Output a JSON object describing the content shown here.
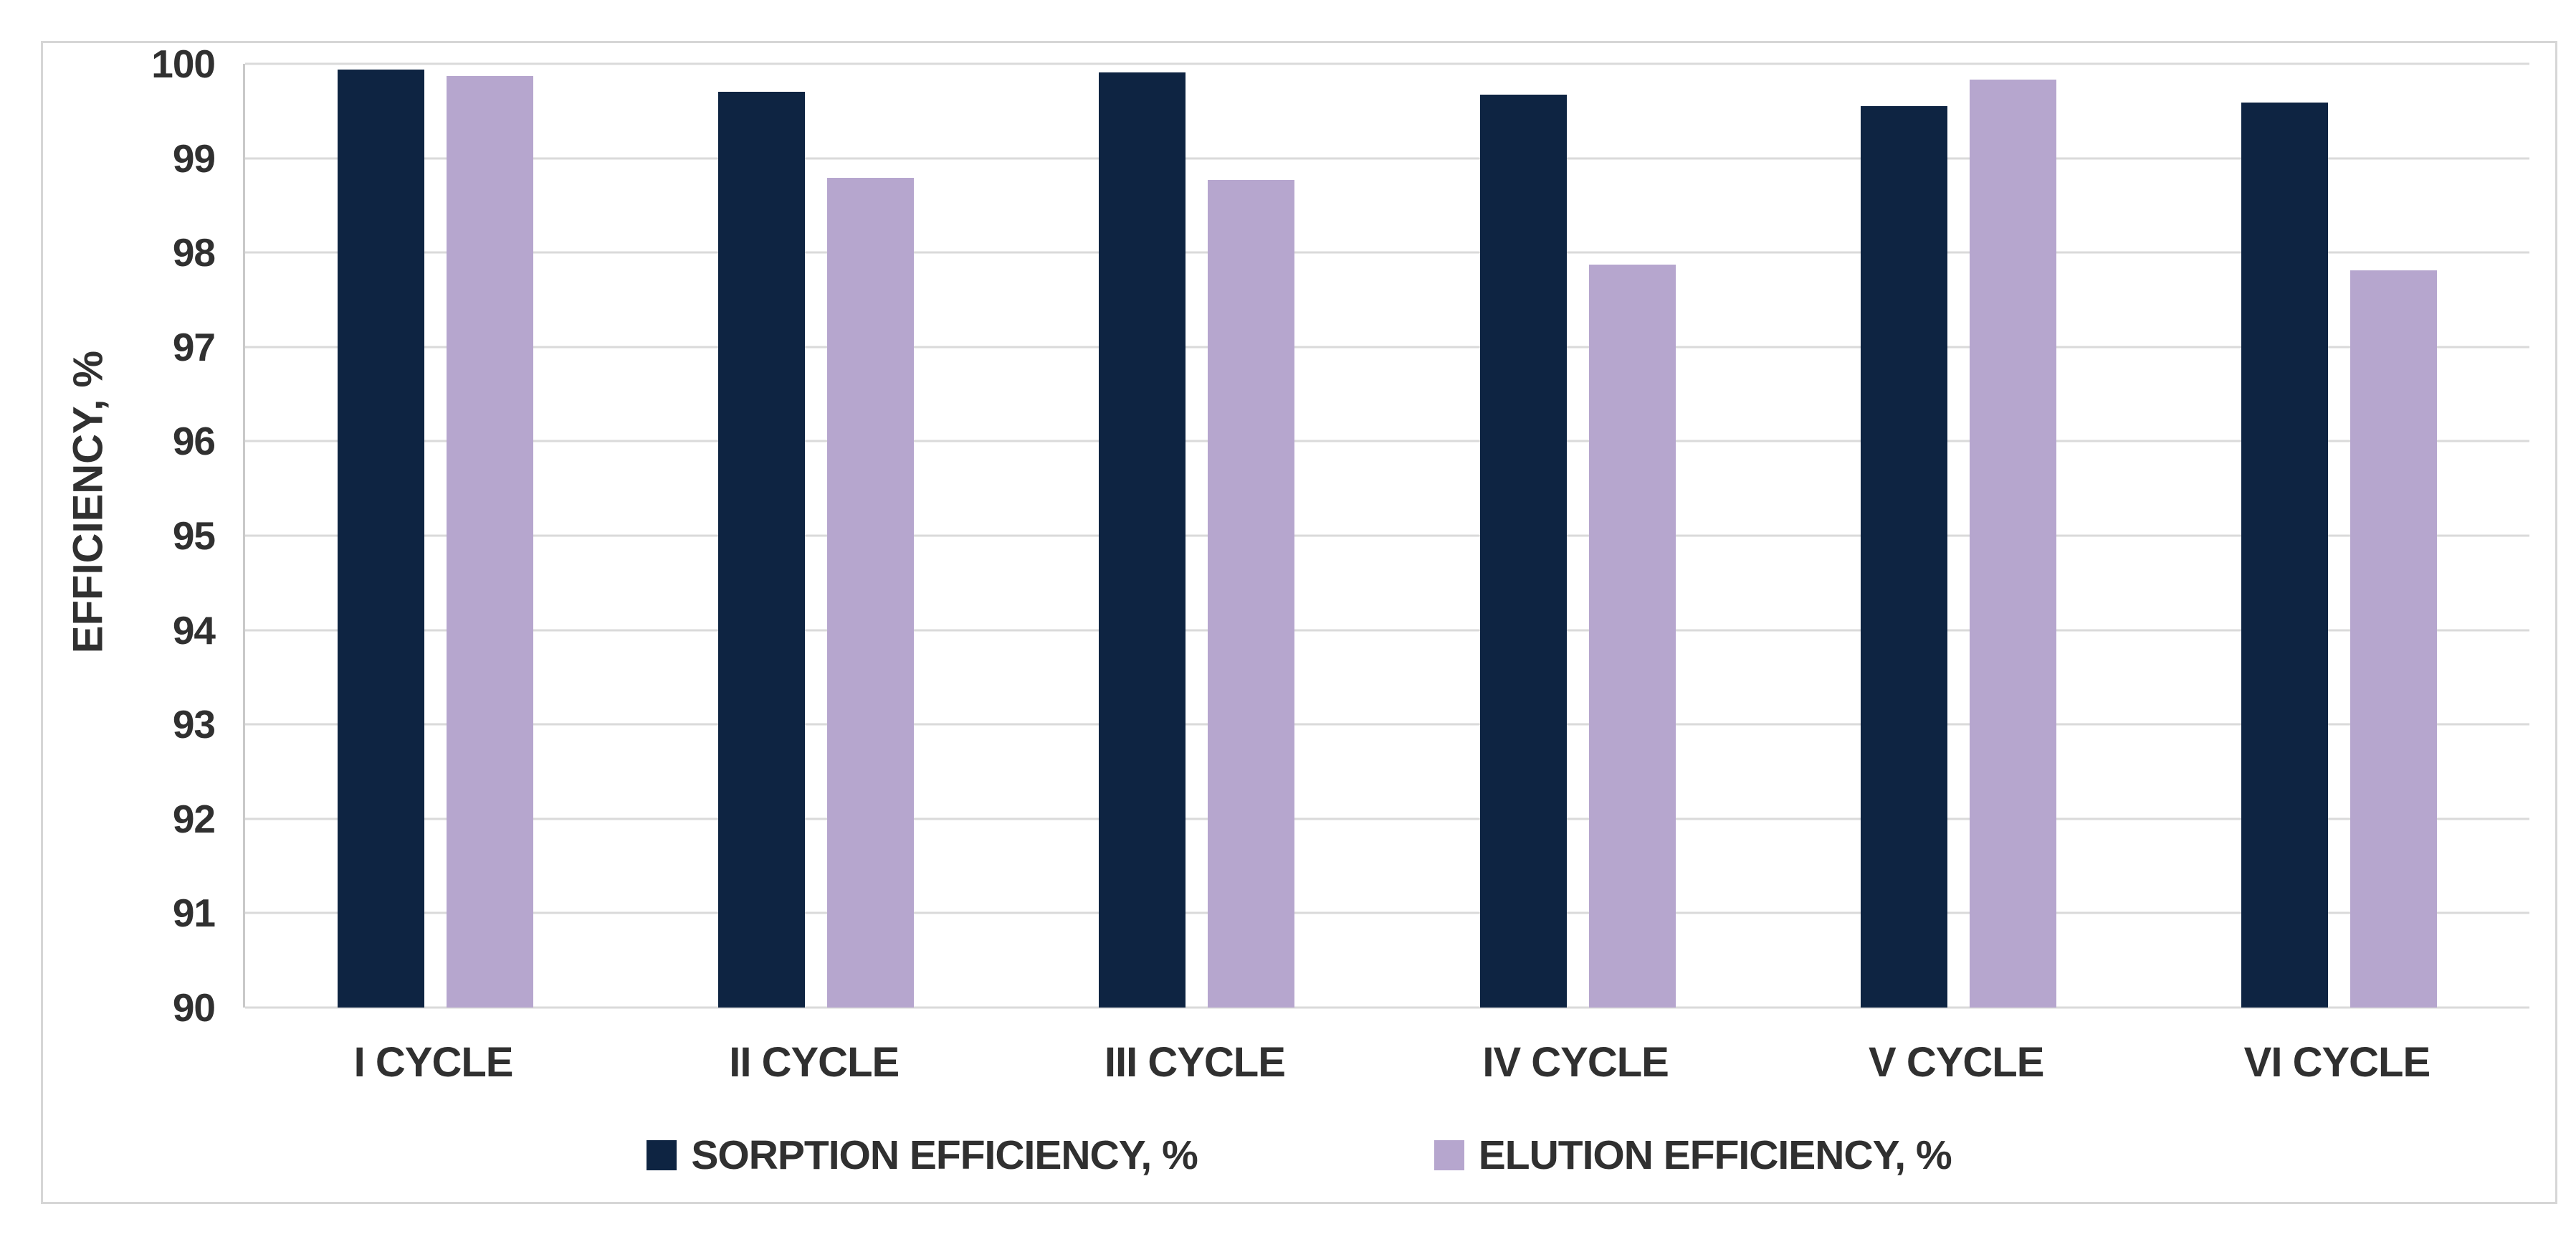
{
  "figure": {
    "background_color": "#ffffff",
    "frame_border_color": "#d6d6d6",
    "gridline_color": "#dadada",
    "axis_line_color": "#c9c9c9",
    "text_color": "#303030"
  },
  "chart_data": {
    "type": "bar",
    "title": "",
    "xlabel": "",
    "ylabel": "EFFICIENCY, %",
    "ylim": [
      90,
      100
    ],
    "ytick_step": 1,
    "ytick_labels": [
      "100",
      "99",
      "98",
      "97",
      "96",
      "95",
      "94",
      "93",
      "92",
      "91",
      "90"
    ],
    "grid": "horizontal",
    "legend_position": "bottom-center",
    "categories": [
      "I CYCLE",
      "II CYCLE",
      "III CYCLE",
      "IV CYCLE",
      "V CYCLE",
      "VI CYCLE"
    ],
    "series": [
      {
        "name": "SORPTION EFFICIENCY, %",
        "color": "#0e2442",
        "values": [
          99.94,
          99.7,
          99.91,
          99.67,
          99.55,
          99.59
        ]
      },
      {
        "name": "ELUTION EFFICIENCY, %",
        "color": "#b6a6ce",
        "values": [
          99.87,
          98.79,
          98.77,
          97.87,
          99.83,
          97.81
        ]
      }
    ]
  }
}
